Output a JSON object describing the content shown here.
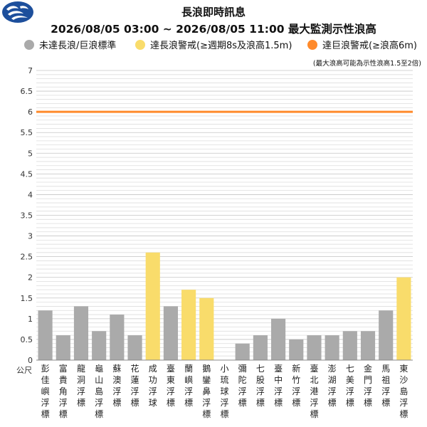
{
  "header": {
    "title": "長浪即時訊息",
    "subtitle": "2026/08/05 03:00 ~ 2026/08/05 11:00 最大監測示性浪高"
  },
  "legend": [
    {
      "label": "未達長浪/巨浪標準",
      "color": "#aaaaaa"
    },
    {
      "label": "達長浪警戒(≥週期8s及浪高1.5m)",
      "color": "#f9dc6b"
    },
    {
      "label": "達巨浪警戒(≥浪高6m)",
      "color": "#ff8a2b"
    }
  ],
  "note": "(最大浪高可能為示性浪高1.5至2倍)",
  "chart_data": {
    "type": "bar",
    "title": "2026/08/05 03:00 ~ 2026/08/05 11:00 最大監測示性浪高",
    "ylabel": "公尺",
    "ylim": [
      0,
      7
    ],
    "yticks": [
      "0",
      "0.5",
      "1",
      "1.5",
      "2",
      "2.5",
      "3",
      "3.5",
      "4",
      "4.5",
      "5",
      "5.5",
      "6",
      "6.5",
      "7"
    ],
    "grid": true,
    "threshold": {
      "value": 6,
      "color": "#ff8a2b"
    },
    "categories": [
      "彭佳嶼浮標",
      "富貴角浮標",
      "龍洞浮標",
      "龜山島浮標",
      "蘇澳浮標",
      "花蓮浮標",
      "成功浮球",
      "臺東浮標",
      "蘭嶼浮標",
      "鵝鑾鼻浮標",
      "小琉球浮標",
      "彌陀浮標",
      "七股浮標",
      "臺中浮標",
      "新竹浮標",
      "臺北港浮標",
      "澎湖浮標",
      "七美浮標",
      "金門浮標",
      "馬祖浮標",
      "東沙島浮標"
    ],
    "values": [
      1.2,
      0.6,
      1.3,
      0.7,
      1.1,
      0.6,
      2.6,
      1.3,
      1.7,
      1.5,
      null,
      0.4,
      0.6,
      1.0,
      0.5,
      0.6,
      0.6,
      0.7,
      0.7,
      1.2,
      2.0
    ],
    "colors": [
      "#aaaaaa",
      "#aaaaaa",
      "#aaaaaa",
      "#aaaaaa",
      "#aaaaaa",
      "#aaaaaa",
      "#f9dc6b",
      "#aaaaaa",
      "#f9dc6b",
      "#f9dc6b",
      "#aaaaaa",
      "#aaaaaa",
      "#aaaaaa",
      "#aaaaaa",
      "#aaaaaa",
      "#aaaaaa",
      "#aaaaaa",
      "#aaaaaa",
      "#aaaaaa",
      "#aaaaaa",
      "#f9dc6b"
    ]
  }
}
